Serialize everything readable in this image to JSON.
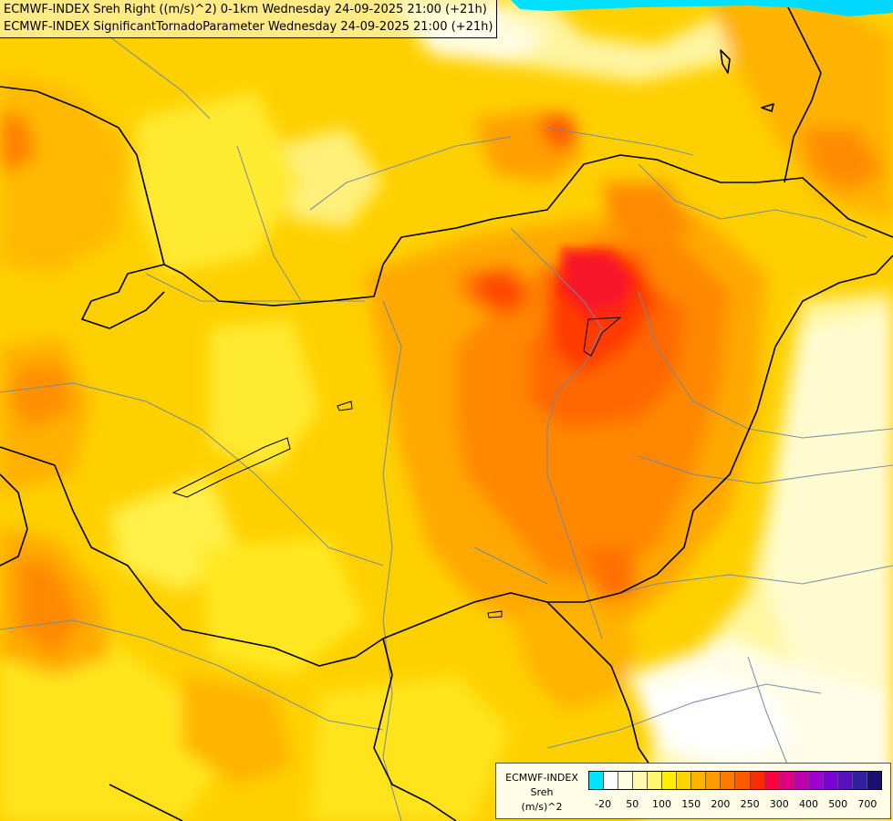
{
  "title": {
    "line1": "ECMWF-INDEX Sreh Right ((m/s)^2) 0-1km Wednesday 24-09-2025 21:00 (+21h)",
    "line2": "ECMWF-INDEX SignificantTornadoParameter Wednesday 24-09-2025 21:00 (+21h)"
  },
  "legend": {
    "line1": "ECMWF-INDEX",
    "line2": "Sreh",
    "line3": "(m/s)^2",
    "colors": [
      "#00e5ff",
      "#ffffff",
      "#fffde0",
      "#fff7b0",
      "#fff570",
      "#ffee00",
      "#ffd400",
      "#ffb400",
      "#ff9a00",
      "#ff7a00",
      "#ff5a00",
      "#ff2a00",
      "#ff0040",
      "#e00080",
      "#c000b0",
      "#a000d0",
      "#7a00d8",
      "#5a10c0",
      "#3020a0",
      "#1a1070"
    ],
    "ticks": [
      "-20",
      "50",
      "100",
      "150",
      "200",
      "250",
      "300",
      "400",
      "500",
      "700"
    ]
  }
}
